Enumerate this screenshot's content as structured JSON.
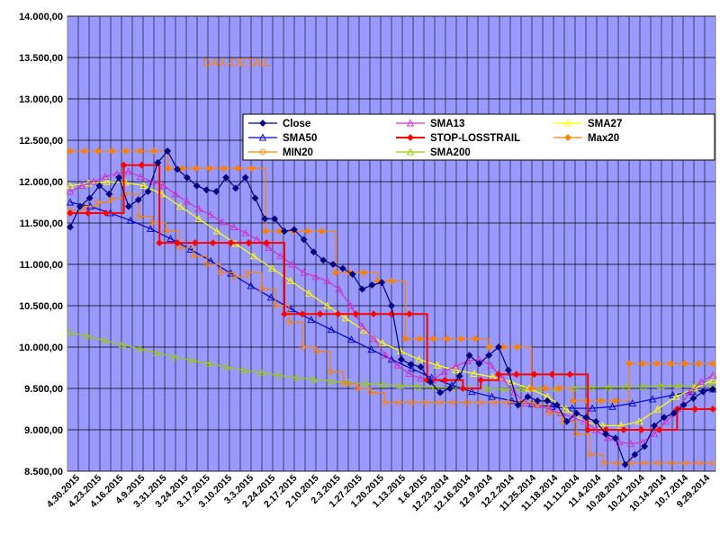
{
  "chart_data": {
    "type": "line",
    "title": "DAX-DETAIL",
    "xlabel": "",
    "ylabel": "",
    "ylim": [
      8500,
      14000
    ],
    "y_ticks": [
      "14.000,00",
      "13.500,00",
      "13.000,00",
      "12.500,00",
      "12.000,00",
      "11.500,00",
      "11.000,00",
      "10.500,00",
      "10.000,00",
      "9.500,00",
      "9.000,00",
      "8.500,00"
    ],
    "x_ticks": [
      "4.30.2015",
      "4.23.2015",
      "4.16.2015",
      "4.9.2015",
      "3.31.2015",
      "3.24.2015",
      "3.17.2015",
      "3.10.2015",
      "3.3.2015",
      "2.24.2015",
      "2.17.2015",
      "2.10.2015",
      "2.3.2015",
      "1.27.2015",
      "1.20.2015",
      "1.13.2015",
      "1.6.2015",
      "12.23.2014",
      "12.16.2014",
      "12.9.2014",
      "12.2.2014",
      "11.25.2014",
      "11.18.2014",
      "11.11.2014",
      "11.4.2014",
      "10.28.2014",
      "10.21.2014",
      "10.14.2014",
      "10.7.2014",
      "9.29.2014"
    ],
    "grid": true,
    "legend_position": "top-right",
    "series": [
      {
        "name": "Close",
        "color": "#000080",
        "marker": "diamond",
        "values": [
          11450,
          11700,
          11800,
          11950,
          11850,
          12050,
          11700,
          11780,
          11880,
          12230,
          12370,
          12150,
          12050,
          11950,
          11900,
          11880,
          12050,
          11920,
          12050,
          11800,
          11550,
          11550,
          11400,
          11420,
          11300,
          11150,
          11050,
          11000,
          10950,
          10880,
          10700,
          10750,
          10780,
          10500,
          9850,
          9790,
          9760,
          9580,
          9450,
          9500,
          9650,
          9900,
          9800,
          9900,
          10000,
          9720,
          9300,
          9400,
          9350,
          9350,
          9300,
          9100,
          9200,
          9150,
          9100,
          8950,
          8900,
          8580,
          8700,
          8800,
          9050,
          9150,
          9200,
          9300,
          9380,
          9460,
          9490
        ]
      },
      {
        "name": "SMA13",
        "color": "#cc33cc",
        "marker": "triangle",
        "values": [
          11880,
          11950,
          12000,
          12060,
          12100,
          12120,
          12060,
          12000,
          11950,
          11850,
          11760,
          11670,
          11600,
          11510,
          11450,
          11380,
          11300,
          11200,
          11100,
          11000,
          10900,
          10850,
          10800,
          10700,
          10500,
          10250,
          10100,
          9900,
          9780,
          9680,
          9620,
          9600,
          9700,
          9770,
          9830,
          9850,
          9780,
          9620,
          9450,
          9320,
          9300,
          9250,
          9200,
          9150,
          9100,
          9000,
          8900,
          8850,
          8830,
          8850,
          8950,
          9100,
          9250,
          9450,
          9580,
          9660
        ]
      },
      {
        "name": "SMA27",
        "color": "#ffff00",
        "marker": "triangle",
        "values": [
          11950,
          11980,
          12000,
          11990,
          11950,
          11850,
          11700,
          11550,
          11400,
          11250,
          11100,
          10950,
          10800,
          10650,
          10500,
          10350,
          10200,
          10050,
          9950,
          9850,
          9780,
          9720,
          9680,
          9640,
          9580,
          9500,
          9400,
          9250,
          9100,
          9050,
          9050,
          9100,
          9250,
          9400,
          9500,
          9600
        ]
      },
      {
        "name": "SMA50",
        "color": "#0000cc",
        "marker": "triangle",
        "values": [
          11750,
          11700,
          11620,
          11530,
          11430,
          11310,
          11180,
          11040,
          10890,
          10740,
          10600,
          10460,
          10330,
          10210,
          10090,
          9970,
          9850,
          9740,
          9630,
          9540,
          9460,
          9400,
          9350,
          9310,
          9280,
          9260,
          9260,
          9280,
          9320,
          9370,
          9420,
          9460,
          9490
        ]
      },
      {
        "name": "STOP-LOSSTRAIL",
        "color": "#ff0000",
        "marker": "diamond",
        "values": [
          11620,
          11620,
          11620,
          12200,
          12200,
          11260,
          11260,
          11260,
          11260,
          11260,
          11260,
          11260,
          10400,
          10400,
          10400,
          10400,
          10400,
          10400,
          10400,
          10400,
          9600,
          9600,
          9500,
          9600,
          9670,
          9670,
          9670,
          9670,
          9670,
          9000,
          9000,
          9000,
          9000,
          9000,
          9250,
          9250,
          9250
        ]
      },
      {
        "name": "Max20",
        "color": "#ff8000",
        "marker": "diamond",
        "values": [
          12370,
          12370,
          12370,
          12370,
          12370,
          12370,
          12370,
          12160,
          12160,
          12160,
          12160,
          12160,
          12160,
          12160,
          11400,
          11400,
          11400,
          11400,
          11400,
          10900,
          10900,
          10900,
          10800,
          10800,
          10100,
          10100,
          10100,
          10100,
          10100,
          10100,
          10000,
          10000,
          10000,
          9500,
          9500,
          9500,
          9350,
          9350,
          9350,
          9350,
          9800,
          9800,
          9800,
          9800,
          9800,
          9800,
          9800
        ]
      },
      {
        "name": "MIN20",
        "color": "#ff8000",
        "marker": "circle",
        "values": [
          11650,
          11700,
          11750,
          11800,
          11850,
          11580,
          11500,
          11400,
          11200,
          11100,
          11000,
          10900,
          10850,
          10900,
          10700,
          10500,
          10300,
          10000,
          9950,
          9700,
          9560,
          9500,
          9450,
          9330,
          9330,
          9330,
          9330,
          9330,
          9330,
          9330,
          9330,
          9330,
          9330,
          9330,
          9300,
          9200,
          9100,
          8950,
          8700,
          8600,
          8600,
          8600,
          8600,
          8600,
          8600,
          8600,
          8600,
          8600
        ]
      },
      {
        "name": "SMA200",
        "color": "#99cc00",
        "marker": "triangle",
        "values": [
          10180,
          10130,
          10080,
          10030,
          9980,
          9930,
          9880,
          9840,
          9800,
          9760,
          9720,
          9690,
          9660,
          9630,
          9610,
          9590,
          9570,
          9560,
          9545,
          9535,
          9525,
          9515,
          9510,
          9505,
          9500,
          9495,
          9495,
          9495,
          9500,
          9505,
          9510,
          9515,
          9520,
          9525,
          9530,
          9535,
          9540,
          9545
        ]
      }
    ]
  }
}
